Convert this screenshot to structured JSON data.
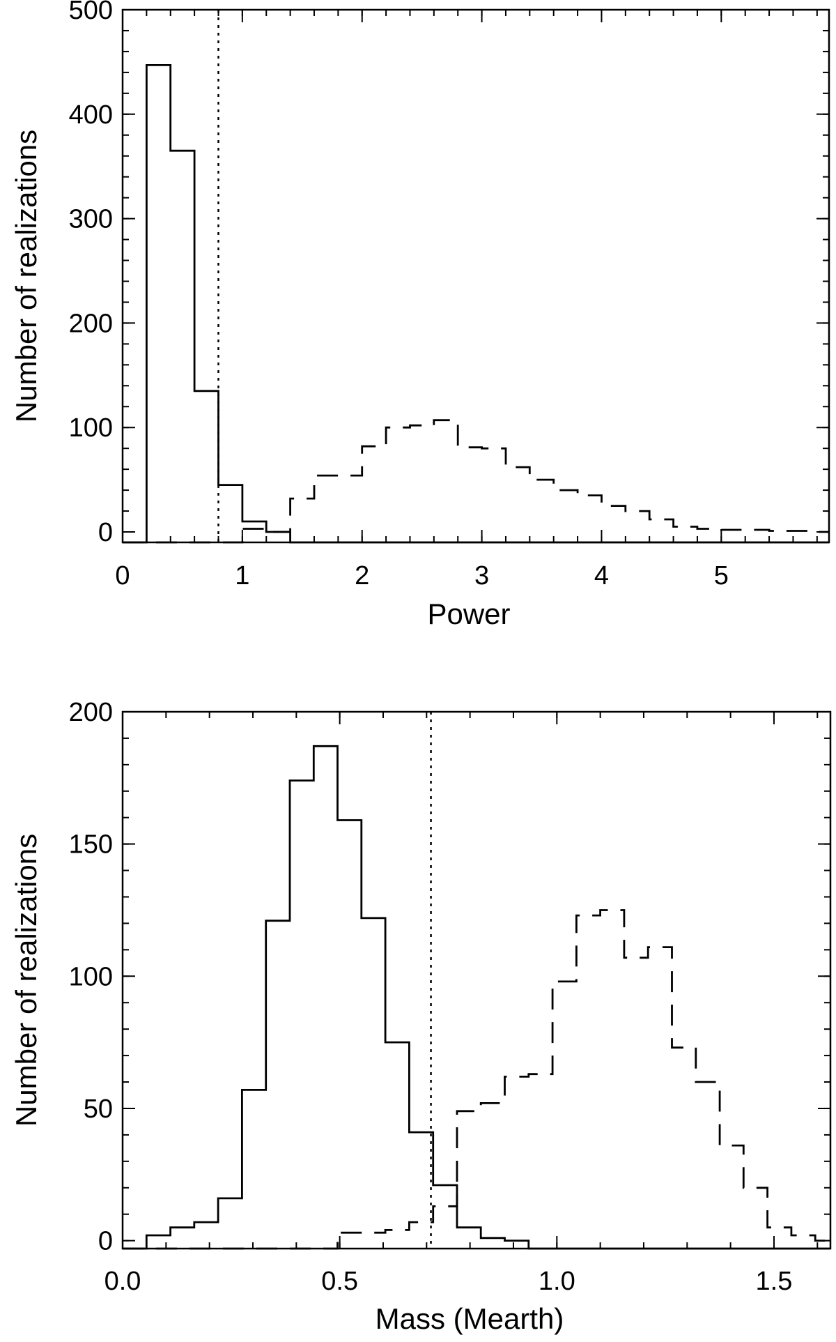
{
  "chart_data": [
    {
      "type": "histogram",
      "xlabel": "Power",
      "ylabel": "Number of realizations",
      "xlim": [
        0,
        5.9
      ],
      "ylim": [
        -10,
        500
      ],
      "xticks": [
        0,
        1,
        2,
        3,
        4,
        5
      ],
      "xtick_labels": [
        "0",
        "1",
        "2",
        "3",
        "4",
        "5"
      ],
      "yticks": [
        0,
        100,
        200,
        300,
        400,
        500
      ],
      "ytick_labels": [
        "0",
        "100",
        "200",
        "300",
        "400",
        "500"
      ],
      "threshold_x": 0.8,
      "bin_width": 0.2,
      "series": [
        {
          "style": "solid",
          "bin_start": 0.0,
          "values": [
            -10,
            447,
            365,
            135,
            45,
            10,
            0,
            -10,
            -10,
            -10,
            -10,
            -10,
            -10,
            -10,
            -10,
            -10,
            -10,
            -10,
            -10,
            -10,
            -10,
            -10,
            -10,
            -10,
            -10,
            -10,
            -10,
            -10,
            -10,
            -10
          ]
        },
        {
          "style": "dashed",
          "bin_start": 0.0,
          "values": [
            -10,
            -10,
            -10,
            -10,
            -10,
            3,
            0,
            32,
            54,
            54,
            82,
            100,
            102,
            107,
            81,
            80,
            62,
            50,
            40,
            35,
            25,
            20,
            12,
            5,
            3,
            2,
            2,
            1,
            1,
            0
          ]
        }
      ]
    },
    {
      "type": "histogram",
      "xlabel": "Mass (Mearth)",
      "ylabel": "Number of realizations",
      "xlim": [
        0,
        1.63
      ],
      "ylim": [
        -3,
        200
      ],
      "xticks": [
        0.0,
        0.5,
        1.0,
        1.5
      ],
      "xtick_labels": [
        "0.0",
        "0.5",
        "1.0",
        "1.5"
      ],
      "yticks": [
        0,
        50,
        100,
        150,
        200
      ],
      "ytick_labels": [
        "0",
        "50",
        "100",
        "150",
        "200"
      ],
      "threshold_x": 0.71,
      "bin_width": 0.055,
      "series": [
        {
          "style": "solid",
          "bin_start": 0.0,
          "values": [
            -3,
            2,
            5,
            7,
            16,
            57,
            121,
            174,
            187,
            159,
            122,
            75,
            41,
            21,
            5,
            1,
            0,
            -3,
            -3,
            -3,
            -3,
            -3,
            -3,
            -3,
            -3,
            -3,
            -3,
            -3,
            -3,
            -3
          ]
        },
        {
          "style": "dashed",
          "bin_start": 0.0,
          "values": [
            -3,
            -3,
            -3,
            -3,
            -3,
            -3,
            -3,
            -3,
            -3,
            3,
            3,
            4,
            7,
            13,
            49,
            52,
            62,
            63,
            98,
            123,
            125,
            107,
            111,
            73,
            60,
            36,
            20,
            5,
            2,
            0
          ]
        }
      ]
    }
  ]
}
